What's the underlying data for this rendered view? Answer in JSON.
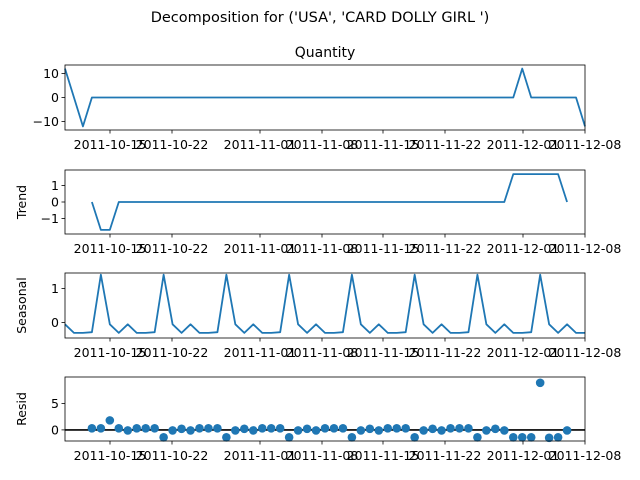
{
  "suptitle": "Decomposition for ('USA', 'CARD DOLLY GIRL ')",
  "colors": {
    "line": "#1f77b4",
    "axis": "#000000",
    "zero_line": "#000000"
  },
  "chart_data": [
    {
      "type": "line",
      "title": "Quantity",
      "ylabel": "",
      "x_ticks": [
        "2011-10-15",
        "2011-10-22",
        "2011-11-01",
        "2011-11-08",
        "2011-11-15",
        "2011-11-22",
        "2011-12-01",
        "2011-12-08"
      ],
      "y_ticks": [
        "10",
        "0",
        "−10"
      ],
      "ylim": [
        -13.5,
        13.5
      ],
      "x": [
        0,
        1,
        2,
        3,
        4,
        5,
        6,
        7,
        8,
        9,
        10,
        11,
        12,
        13,
        14,
        15,
        16,
        17,
        18,
        19,
        20,
        21,
        22,
        23,
        24,
        25,
        26,
        27,
        28,
        29,
        30,
        31,
        32,
        33,
        34,
        35,
        36,
        37,
        38,
        39,
        40,
        41,
        42,
        43,
        44,
        45,
        46,
        47,
        48,
        49,
        50,
        51,
        52,
        53,
        54,
        55,
        56,
        57,
        58
      ],
      "series": [
        {
          "values": [
            12,
            0,
            -12,
            0,
            0,
            0,
            0,
            0,
            0,
            0,
            0,
            0,
            0,
            0,
            0,
            0,
            0,
            0,
            0,
            0,
            0,
            0,
            0,
            0,
            0,
            0,
            0,
            0,
            0,
            0,
            0,
            0,
            0,
            0,
            0,
            0,
            0,
            0,
            0,
            0,
            0,
            0,
            0,
            0,
            0,
            0,
            0,
            0,
            0,
            0,
            0,
            12,
            0,
            0,
            0,
            0,
            0,
            0,
            -12
          ]
        }
      ]
    },
    {
      "type": "line",
      "title": "",
      "ylabel": "Trend",
      "x_ticks": [
        "2011-10-15",
        "2011-10-22",
        "2011-11-01",
        "2011-11-08",
        "2011-11-15",
        "2011-11-22",
        "2011-12-01",
        "2011-12-08"
      ],
      "y_ticks": [
        "1",
        "0",
        "−1"
      ],
      "ylim": [
        -1.95,
        1.95
      ],
      "x": [
        0,
        1,
        2,
        3,
        4,
        5,
        6,
        7,
        8,
        9,
        10,
        11,
        12,
        13,
        14,
        15,
        16,
        17,
        18,
        19,
        20,
        21,
        22,
        23,
        24,
        25,
        26,
        27,
        28,
        29,
        30,
        31,
        32,
        33,
        34,
        35,
        36,
        37,
        38,
        39,
        40,
        41,
        42,
        43,
        44,
        45,
        46,
        47,
        48,
        49,
        50,
        51,
        52,
        53,
        54,
        55,
        56,
        57,
        58
      ],
      "series": [
        {
          "values": [
            null,
            null,
            null,
            0,
            -1.7,
            -1.7,
            0,
            0,
            0,
            0,
            0,
            0,
            0,
            0,
            0,
            0,
            0,
            0,
            0,
            0,
            0,
            0,
            0,
            0,
            0,
            0,
            0,
            0,
            0,
            0,
            0,
            0,
            0,
            0,
            0,
            0,
            0,
            0,
            0,
            0,
            0,
            0,
            0,
            0,
            0,
            0,
            0,
            0,
            0,
            0,
            1.7,
            1.7,
            1.7,
            1.7,
            1.7,
            1.7,
            0,
            null,
            null
          ]
        }
      ]
    },
    {
      "type": "line",
      "title": "",
      "ylabel": "Seasonal",
      "x_ticks": [
        "2011-10-15",
        "2011-10-22",
        "2011-11-01",
        "2011-11-08",
        "2011-11-15",
        "2011-11-22",
        "2011-12-01",
        "2011-12-08"
      ],
      "y_ticks": [
        "1",
        "0"
      ],
      "ylim": [
        -0.45,
        1.45
      ],
      "x": [
        0,
        1,
        2,
        3,
        4,
        5,
        6,
        7,
        8,
        9,
        10,
        11,
        12,
        13,
        14,
        15,
        16,
        17,
        18,
        19,
        20,
        21,
        22,
        23,
        24,
        25,
        26,
        27,
        28,
        29,
        30,
        31,
        32,
        33,
        34,
        35,
        36,
        37,
        38,
        39,
        40,
        41,
        42,
        43,
        44,
        45,
        46,
        47,
        48,
        49,
        50,
        51,
        52,
        53,
        54,
        55,
        56,
        57,
        58
      ],
      "series": [
        {
          "values": [
            -0.05,
            -0.3,
            -0.3,
            -0.28,
            1.4,
            -0.05,
            -0.3,
            -0.05,
            -0.3,
            -0.3,
            -0.28,
            1.4,
            -0.05,
            -0.3,
            -0.05,
            -0.3,
            -0.3,
            -0.28,
            1.4,
            -0.05,
            -0.3,
            -0.05,
            -0.3,
            -0.3,
            -0.28,
            1.4,
            -0.05,
            -0.3,
            -0.05,
            -0.3,
            -0.3,
            -0.28,
            1.4,
            -0.05,
            -0.3,
            -0.05,
            -0.3,
            -0.3,
            -0.28,
            1.4,
            -0.05,
            -0.3,
            -0.05,
            -0.3,
            -0.3,
            -0.28,
            1.4,
            -0.05,
            -0.3,
            -0.05,
            -0.3,
            -0.3,
            -0.28,
            1.4,
            -0.05,
            -0.3,
            -0.05,
            -0.3,
            -0.3
          ]
        }
      ]
    },
    {
      "type": "scatter",
      "title": "",
      "ylabel": "Resid",
      "x_ticks": [
        "2011-10-15",
        "2011-10-22",
        "2011-11-01",
        "2011-11-08",
        "2011-11-15",
        "2011-11-22",
        "2011-12-01",
        "2011-12-08"
      ],
      "y_ticks": [
        "5",
        "0"
      ],
      "ylim": [
        -2.1,
        10.0
      ],
      "zero_line": true,
      "x": [
        3,
        4,
        5,
        6,
        7,
        8,
        9,
        10,
        11,
        12,
        13,
        14,
        15,
        16,
        17,
        18,
        19,
        20,
        21,
        22,
        23,
        24,
        25,
        26,
        27,
        28,
        29,
        30,
        31,
        32,
        33,
        34,
        35,
        36,
        37,
        38,
        39,
        40,
        41,
        42,
        43,
        44,
        45,
        46,
        47,
        48,
        49,
        50,
        51,
        52,
        53,
        54,
        55,
        56
      ],
      "series": [
        {
          "values": [
            0.3,
            0.3,
            1.8,
            0.3,
            -0.1,
            0.3,
            0.3,
            0.3,
            -1.4,
            -0.1,
            0.2,
            -0.1,
            0.3,
            0.3,
            0.3,
            -1.4,
            -0.1,
            0.2,
            -0.1,
            0.3,
            0.3,
            0.3,
            -1.4,
            -0.1,
            0.2,
            -0.1,
            0.3,
            0.3,
            0.3,
            -1.4,
            -0.1,
            0.2,
            -0.1,
            0.3,
            0.3,
            0.3,
            -1.4,
            -0.1,
            0.2,
            -0.1,
            0.3,
            0.3,
            0.3,
            -1.4,
            -0.1,
            0.2,
            -0.1,
            -1.4,
            -1.4,
            -1.4,
            8.9,
            -1.5,
            -1.4,
            -0.1
          ]
        }
      ]
    }
  ]
}
